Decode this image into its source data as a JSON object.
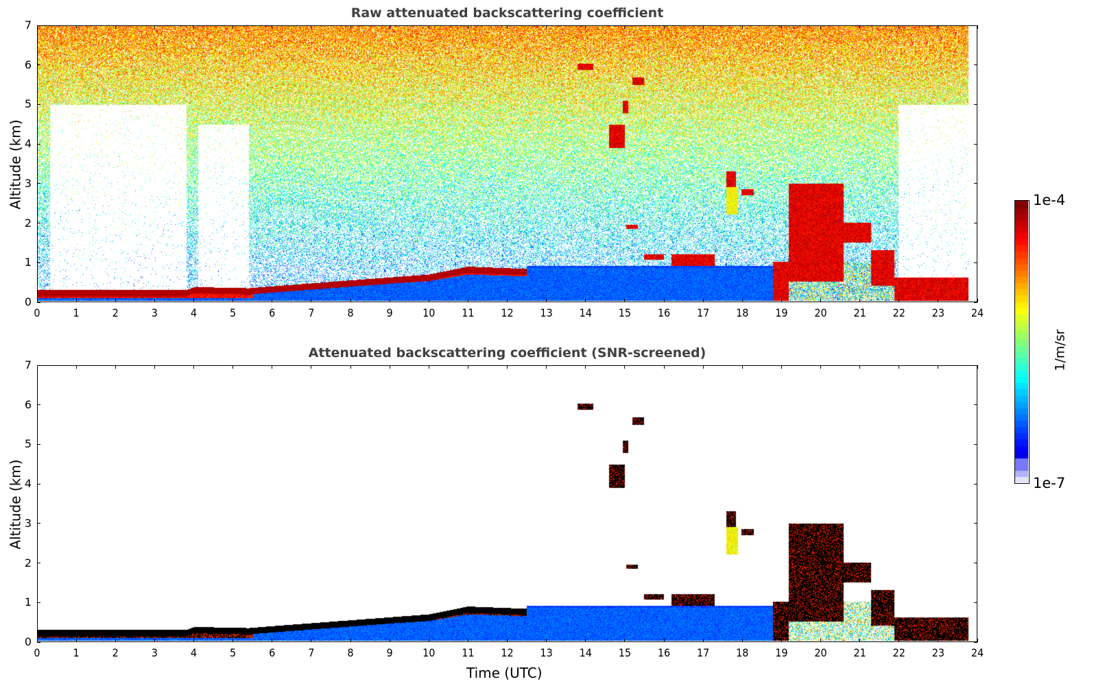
{
  "chart_data": [
    {
      "type": "heatmap",
      "title": "Raw attenuated backscattering coefficient",
      "xlabel": "",
      "ylabel": "Altitude (km)",
      "xlim": [
        0,
        24
      ],
      "ylim": [
        0,
        7
      ],
      "xticks": [
        "0",
        "1",
        "2",
        "3",
        "4",
        "5",
        "6",
        "7",
        "8",
        "9",
        "10",
        "11",
        "12",
        "13",
        "14",
        "15",
        "16",
        "17",
        "18",
        "19",
        "20",
        "21",
        "22",
        "23",
        "24"
      ],
      "yticks": [
        "0",
        "1",
        "2",
        "3",
        "4",
        "5",
        "6",
        "7"
      ],
      "screened": false,
      "features": {
        "boundary_layer_top_km": [
          {
            "t": 0,
            "z": 0.2
          },
          {
            "t": 3.8,
            "z": 0.2
          },
          {
            "t": 4.0,
            "z": 0.28
          },
          {
            "t": 5.4,
            "z": 0.25
          },
          {
            "t": 6,
            "z": 0.3
          },
          {
            "t": 8,
            "z": 0.45
          },
          {
            "t": 10,
            "z": 0.6
          },
          {
            "t": 11,
            "z": 0.8
          },
          {
            "t": 12.3,
            "z": 0.75
          }
        ],
        "cloud_layers": [
          {
            "t0": 13.8,
            "t1": 14.2,
            "z0": 5.9,
            "z1": 6.05
          },
          {
            "t0": 14.6,
            "t1": 15.0,
            "z0": 3.9,
            "z1": 4.5
          },
          {
            "t0": 14.95,
            "t1": 15.1,
            "z0": 4.8,
            "z1": 5.1
          },
          {
            "t0": 15.2,
            "t1": 15.5,
            "z0": 5.5,
            "z1": 5.7
          },
          {
            "t0": 15.05,
            "t1": 15.35,
            "z0": 1.85,
            "z1": 1.95
          },
          {
            "t0": 15.5,
            "t1": 16.0,
            "z0": 1.05,
            "z1": 1.2
          },
          {
            "t0": 16.2,
            "t1": 17.3,
            "z0": 0.9,
            "z1": 1.2
          },
          {
            "t0": 17.6,
            "t1": 17.85,
            "z0": 2.9,
            "z1": 3.3
          },
          {
            "t0": 17.6,
            "t1": 17.9,
            "z0": 2.2,
            "z1": 2.9,
            "level": "moderate"
          },
          {
            "t0": 18.0,
            "t1": 18.3,
            "z0": 2.7,
            "z1": 2.85
          },
          {
            "t0": 18.8,
            "t1": 19.2,
            "z0": 0.0,
            "z1": 1.0
          },
          {
            "t0": 19.2,
            "t1": 20.6,
            "z0": 0.5,
            "z1": 3.0
          },
          {
            "t0": 20.6,
            "t1": 21.3,
            "z0": 1.5,
            "z1": 2.0
          },
          {
            "t0": 21.3,
            "t1": 21.9,
            "z0": 0.4,
            "z1": 1.3
          },
          {
            "t0": 21.9,
            "t1": 23.8,
            "z0": 0.0,
            "z1": 0.6
          }
        ]
      }
    },
    {
      "type": "heatmap",
      "title": "Attenuated backscattering coefficient (SNR-screened)",
      "xlabel": "Time (UTC)",
      "ylabel": "Altitude (km)",
      "xlim": [
        0,
        24
      ],
      "ylim": [
        0,
        7
      ],
      "xticks": [
        "0",
        "1",
        "2",
        "3",
        "4",
        "5",
        "6",
        "7",
        "8",
        "9",
        "10",
        "11",
        "12",
        "13",
        "14",
        "15",
        "16",
        "17",
        "18",
        "19",
        "20",
        "21",
        "22",
        "23",
        "24"
      ],
      "yticks": [
        "0",
        "1",
        "2",
        "3",
        "4",
        "5",
        "6",
        "7"
      ],
      "screened": true
    }
  ],
  "colorbar": {
    "max_label": "1e-4",
    "min_label": "1e-7",
    "unit": "1/m/sr",
    "scale": "log"
  },
  "colors": {
    "title": "#404040",
    "saturated": "#000000"
  }
}
